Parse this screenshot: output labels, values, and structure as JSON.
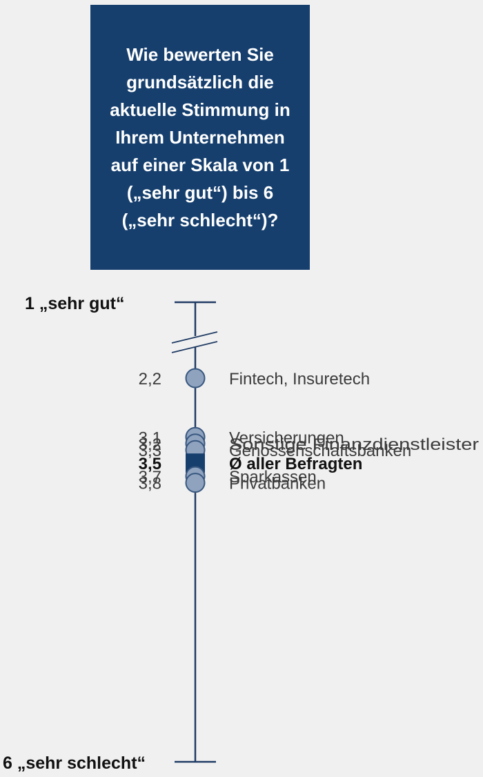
{
  "question": {
    "text": "Wie bewerten Sie\ngrundsätzlich die\naktuelle Stimmung in\nIhrem Unternehmen\nauf einer Skala von 1\n(„sehr gut“) bis 6\n(„sehr schlecht“)?"
  },
  "colors": {
    "box": "#163f6e",
    "axis": "#1f3b63",
    "marker_fill": "#8fa3bf",
    "marker_stroke": "#38577f",
    "average_marker": "#163f6e",
    "text": "#3b3b3b",
    "background": "#f0f0f0"
  },
  "chart_data": {
    "type": "scatter",
    "orientation": "vertical",
    "axis_min": 1,
    "axis_max": 6,
    "axis_break": true,
    "axis_labels": {
      "top": "1  „sehr gut“",
      "bottom": "6  „sehr schlecht“"
    },
    "points": [
      {
        "value": 2.2,
        "value_label": "2,2",
        "label": "Fintech, Insuretech",
        "marker": "circle",
        "emphasis": false
      },
      {
        "value": 3.1,
        "value_label": "3,1",
        "label": "Versicherungen",
        "marker": "circle",
        "emphasis": false
      },
      {
        "value": 3.2,
        "value_label": "3,2",
        "label": "Sonstige Finanzdienstleister",
        "marker": "circle",
        "emphasis": false
      },
      {
        "value": 3.3,
        "value_label": "3,3",
        "label": "Genossenschaftsbanken",
        "marker": "circle",
        "emphasis": false
      },
      {
        "value": 3.5,
        "value_label": "3,5",
        "label": "Ø aller Befragten",
        "marker": "square",
        "emphasis": true
      },
      {
        "value": 3.7,
        "value_label": "3,7",
        "label": "Sparkassen",
        "marker": "circle",
        "emphasis": false
      },
      {
        "value": 3.8,
        "value_label": "3,8",
        "label": "Privatbanken",
        "marker": "circle",
        "emphasis": false
      }
    ]
  }
}
